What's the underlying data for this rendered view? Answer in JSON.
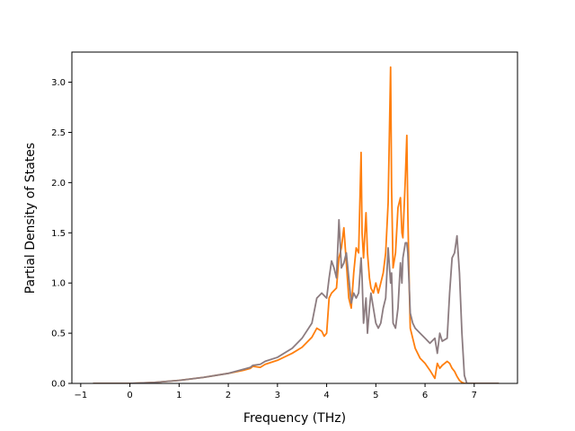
{
  "chart_data": {
    "type": "line",
    "title": "",
    "xlabel": "Frequency (THz)",
    "ylabel": "Partial Density of States",
    "xlim": [
      -1.18,
      7.88
    ],
    "ylim": [
      0.0,
      3.3
    ],
    "xticks": [
      -1,
      0,
      1,
      2,
      3,
      4,
      5,
      6,
      7
    ],
    "xtick_labels": [
      "−1",
      "0",
      "1",
      "2",
      "3",
      "4",
      "5",
      "6",
      "7"
    ],
    "yticks": [
      0.0,
      0.5,
      1.0,
      1.5,
      2.0,
      2.5,
      3.0
    ],
    "ytick_labels": [
      "0.0",
      "0.5",
      "1.0",
      "1.5",
      "2.0",
      "2.5",
      "3.0"
    ],
    "grid": false,
    "legend": "none",
    "series": [
      {
        "color": "#ff7f0e",
        "x": [
          -0.75,
          0.0,
          0.5,
          1.0,
          1.5,
          2.0,
          2.3,
          2.45,
          2.5,
          2.65,
          2.75,
          3.0,
          3.3,
          3.5,
          3.7,
          3.8,
          3.9,
          3.95,
          4.0,
          4.05,
          4.1,
          4.2,
          4.25,
          4.3,
          4.35,
          4.4,
          4.45,
          4.5,
          4.55,
          4.6,
          4.65,
          4.7,
          4.72,
          4.75,
          4.8,
          4.83,
          4.87,
          4.9,
          4.95,
          5.0,
          5.05,
          5.1,
          5.15,
          5.2,
          5.25,
          5.3,
          5.32,
          5.35,
          5.4,
          5.45,
          5.5,
          5.53,
          5.55,
          5.6,
          5.63,
          5.65,
          5.68,
          5.7,
          5.75,
          5.8,
          5.9,
          6.0,
          6.1,
          6.2,
          6.25,
          6.3,
          6.35,
          6.45,
          6.5,
          6.55,
          6.6,
          6.65,
          6.7,
          6.75,
          6.8,
          6.85,
          7.5
        ],
        "y": [
          0.0,
          0.0,
          0.01,
          0.03,
          0.06,
          0.1,
          0.13,
          0.15,
          0.17,
          0.16,
          0.19,
          0.23,
          0.3,
          0.36,
          0.46,
          0.55,
          0.52,
          0.47,
          0.5,
          0.85,
          0.9,
          0.95,
          1.25,
          1.35,
          1.55,
          1.2,
          0.85,
          0.75,
          1.1,
          1.35,
          1.3,
          2.3,
          1.5,
          1.25,
          1.7,
          1.3,
          1.05,
          0.95,
          0.9,
          1.0,
          0.9,
          1.0,
          1.1,
          1.3,
          1.8,
          3.15,
          1.95,
          1.15,
          1.3,
          1.75,
          1.85,
          1.5,
          1.45,
          2.05,
          2.47,
          1.7,
          0.95,
          0.55,
          0.45,
          0.35,
          0.25,
          0.2,
          0.13,
          0.05,
          0.2,
          0.15,
          0.18,
          0.22,
          0.2,
          0.15,
          0.12,
          0.07,
          0.03,
          0.01,
          0.0,
          0.0,
          0.0
        ]
      },
      {
        "color": "#8c7c80",
        "x": [
          -0.75,
          0.0,
          0.5,
          1.0,
          1.5,
          2.0,
          2.3,
          2.45,
          2.5,
          2.65,
          2.75,
          3.0,
          3.3,
          3.5,
          3.7,
          3.8,
          3.9,
          4.0,
          4.05,
          4.1,
          4.15,
          4.2,
          4.25,
          4.3,
          4.35,
          4.4,
          4.45,
          4.5,
          4.55,
          4.6,
          4.65,
          4.7,
          4.72,
          4.75,
          4.8,
          4.83,
          4.87,
          4.9,
          4.95,
          5.0,
          5.05,
          5.1,
          5.15,
          5.2,
          5.25,
          5.3,
          5.32,
          5.35,
          5.4,
          5.45,
          5.5,
          5.53,
          5.55,
          5.6,
          5.63,
          5.65,
          5.68,
          5.7,
          5.75,
          5.8,
          5.9,
          6.0,
          6.1,
          6.2,
          6.25,
          6.3,
          6.35,
          6.45,
          6.5,
          6.55,
          6.6,
          6.65,
          6.7,
          6.75,
          6.8,
          6.85,
          7.5
        ],
        "y": [
          0.0,
          0.0,
          0.01,
          0.03,
          0.06,
          0.1,
          0.14,
          0.16,
          0.18,
          0.19,
          0.22,
          0.26,
          0.35,
          0.45,
          0.6,
          0.85,
          0.9,
          0.85,
          1.05,
          1.22,
          1.15,
          1.05,
          1.63,
          1.15,
          1.2,
          1.3,
          1.05,
          0.8,
          0.9,
          0.85,
          0.9,
          1.25,
          1.05,
          0.6,
          0.85,
          0.5,
          0.75,
          0.9,
          0.75,
          0.6,
          0.55,
          0.6,
          0.75,
          0.85,
          1.35,
          1.0,
          1.1,
          0.6,
          0.55,
          0.75,
          1.2,
          1.0,
          1.25,
          1.4,
          1.4,
          1.3,
          0.95,
          0.7,
          0.6,
          0.55,
          0.5,
          0.45,
          0.4,
          0.45,
          0.3,
          0.5,
          0.42,
          0.45,
          0.9,
          1.25,
          1.3,
          1.47,
          1.1,
          0.5,
          0.08,
          0.0,
          0.0
        ]
      }
    ]
  }
}
